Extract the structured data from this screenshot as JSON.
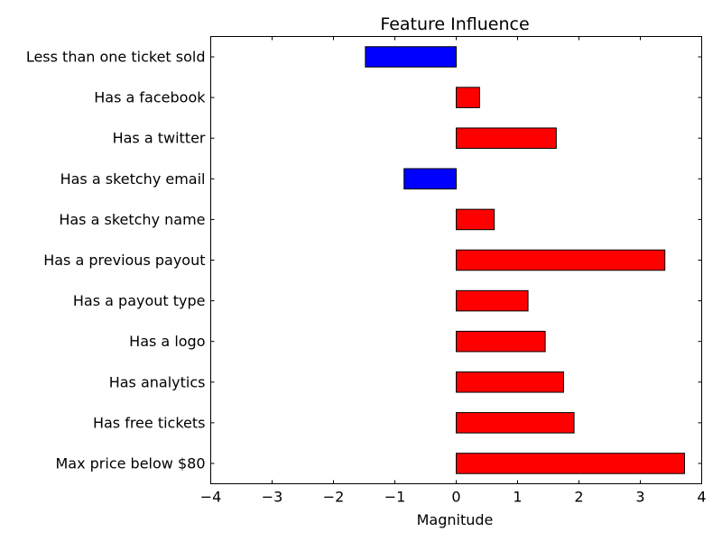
{
  "chart_data": {
    "type": "bar",
    "orientation": "horizontal",
    "title": "Feature Influence",
    "xlabel": "Magnitude",
    "ylabel": "",
    "xlim": [
      -4,
      4
    ],
    "xticks": [
      -4,
      -3,
      -2,
      -1,
      0,
      1,
      2,
      3,
      4
    ],
    "xtick_labels": [
      "−4",
      "−3",
      "−2",
      "−1",
      "0",
      "1",
      "2",
      "3",
      "4"
    ],
    "grid": false,
    "legend": "none",
    "positive_color": "#ff0000",
    "negative_color": "#0000ff",
    "categories": [
      "Less than one ticket sold",
      "Has a facebook",
      "Has a twitter",
      "Has a sketchy email",
      "Has a sketchy name",
      "Has a previous payout",
      "Has a payout type",
      "Has a logo",
      "Has analytics",
      "Has free tickets",
      "Max price below $80"
    ],
    "values": [
      -1.48,
      0.38,
      1.63,
      -0.85,
      0.62,
      3.4,
      1.17,
      1.45,
      1.75,
      1.92,
      3.72
    ]
  }
}
